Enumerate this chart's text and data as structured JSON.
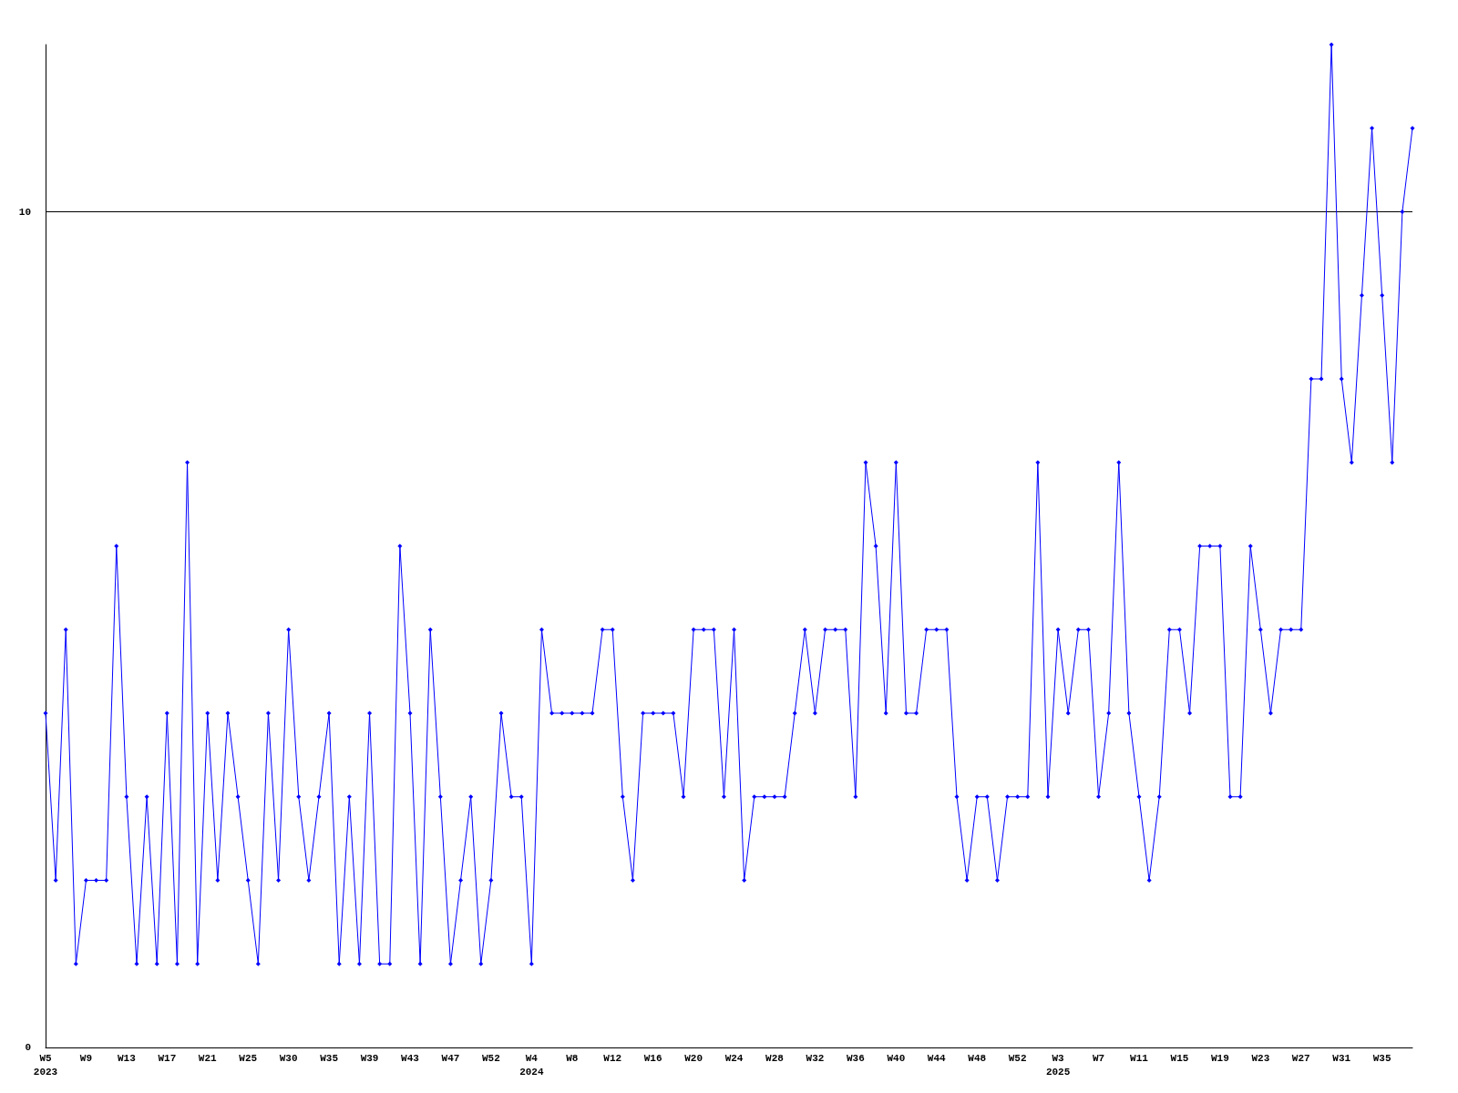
{
  "chart_data": {
    "type": "line",
    "categories": [
      "W5\n2023",
      null,
      null,
      null,
      "W9",
      null,
      null,
      null,
      "W13",
      null,
      null,
      null,
      "W17",
      null,
      null,
      null,
      "W21",
      null,
      null,
      null,
      "W25",
      null,
      null,
      null,
      "W30",
      null,
      null,
      null,
      "W35",
      null,
      null,
      null,
      "W39",
      null,
      null,
      null,
      "W43",
      null,
      null,
      null,
      "W47",
      null,
      null,
      null,
      "W52",
      null,
      null,
      null,
      "W4\n2024",
      null,
      null,
      null,
      "W8",
      null,
      null,
      null,
      "W12",
      null,
      null,
      null,
      "W16",
      null,
      null,
      null,
      "W20",
      null,
      null,
      null,
      "W24",
      null,
      null,
      null,
      "W28",
      null,
      null,
      null,
      "W32",
      null,
      null,
      null,
      "W36",
      null,
      null,
      null,
      "W40",
      null,
      null,
      null,
      "W44",
      null,
      null,
      null,
      "W48",
      null,
      null,
      null,
      "W52",
      null,
      null,
      null,
      "W3\n2025",
      null,
      null,
      null,
      "W7",
      null,
      null,
      null,
      "W11",
      null,
      null,
      null,
      "W15",
      null,
      null,
      null,
      "W19",
      null,
      null,
      null,
      "W23",
      null,
      null,
      null,
      "W27",
      null,
      null,
      null,
      "W31",
      null,
      null,
      null,
      "W35",
      null,
      null,
      null
    ],
    "series": [
      {
        "color": "#0000ff",
        "values": [
          4,
          2,
          5,
          1,
          2,
          2,
          2,
          6,
          3,
          1,
          3,
          1,
          4,
          1,
          7,
          1,
          4,
          2,
          4,
          3,
          2,
          1,
          4,
          2,
          5,
          3,
          2,
          3,
          4,
          1,
          3,
          1,
          4,
          1,
          1,
          6,
          4,
          1,
          5,
          3,
          1,
          2,
          3,
          1,
          2,
          4,
          3,
          3,
          1,
          5,
          4,
          4,
          4,
          4,
          4,
          5,
          5,
          3,
          2,
          4,
          4,
          4,
          4,
          3,
          5,
          5,
          5,
          3,
          5,
          2,
          3,
          3,
          3,
          3,
          4,
          5,
          4,
          5,
          5,
          5,
          3,
          7,
          6,
          4,
          7,
          4,
          4,
          5,
          5,
          5,
          3,
          2,
          3,
          3,
          2,
          3,
          3,
          3,
          7,
          3,
          5,
          4,
          5,
          5,
          3,
          4,
          7,
          4,
          3,
          2,
          3,
          5,
          5,
          4,
          6,
          6,
          6,
          3,
          3,
          6,
          5,
          4,
          5,
          5,
          5,
          8,
          8,
          12,
          8,
          7,
          9,
          11,
          9,
          7,
          10,
          11
        ]
      }
    ],
    "ylim": [
      0,
      12
    ],
    "yticks": [
      0,
      10
    ],
    "grid": "y",
    "marker": "diamond",
    "line_style": "solid"
  }
}
